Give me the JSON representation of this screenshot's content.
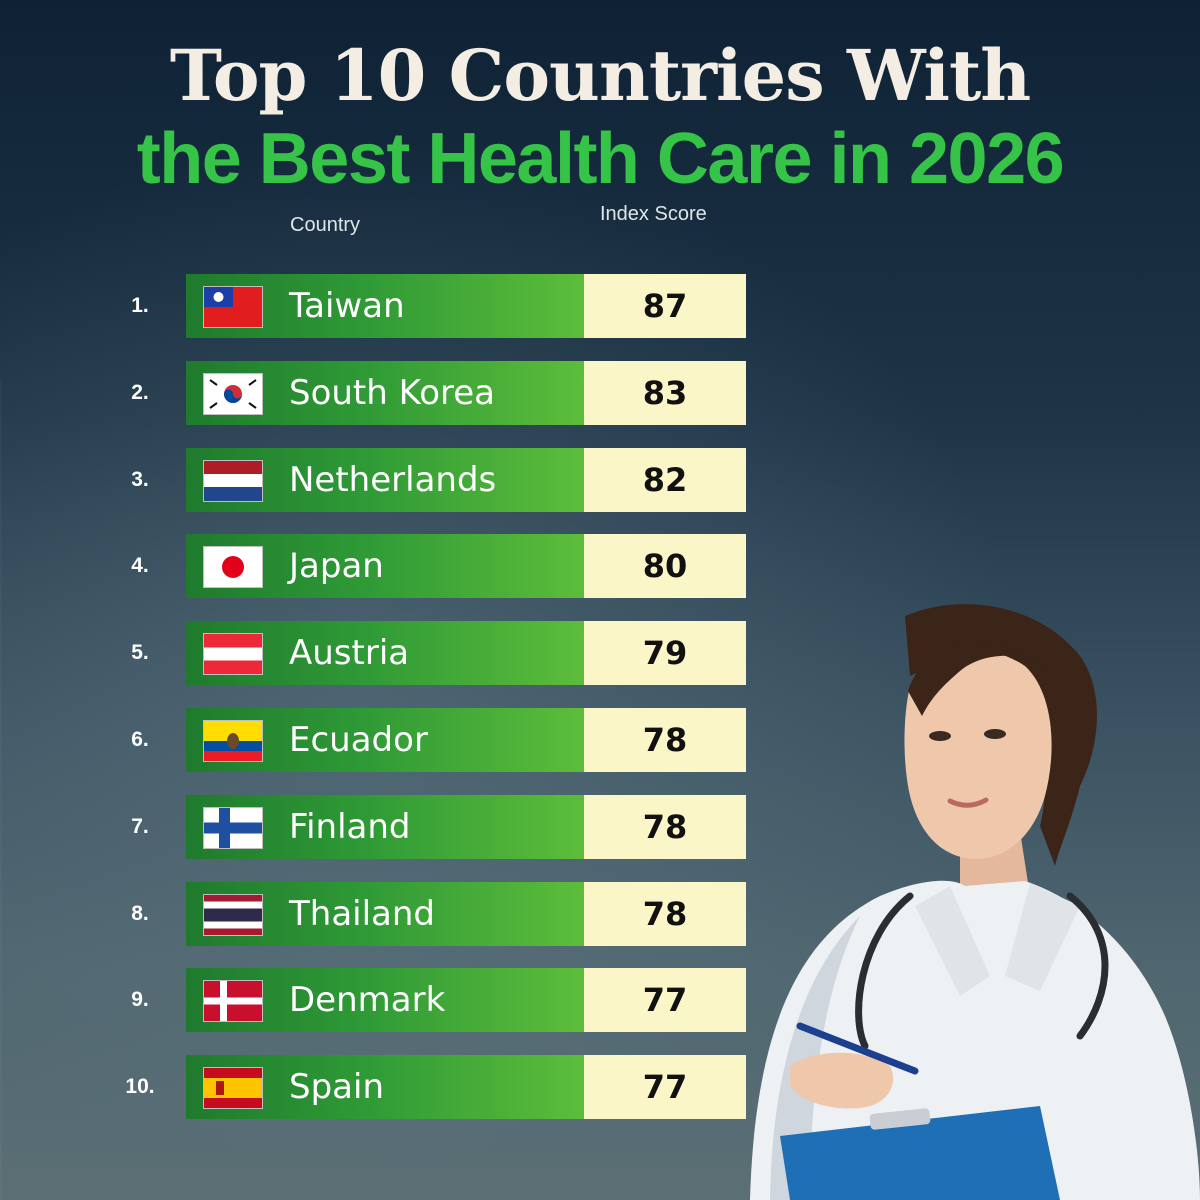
{
  "title_line1": "Top 10 Countries With",
  "title_line2": "the Best Health Care in 2026",
  "colors": {
    "title_green": "#35c447",
    "bar_green": "#2f9a36",
    "score_bg": "#fbf6c8"
  },
  "chart_data": {
    "type": "table",
    "columns": [
      "Country",
      "Index Score"
    ],
    "rows": [
      {
        "rank": "1.",
        "country": "Taiwan",
        "flag": "taiwan-flag-icon",
        "score": 87
      },
      {
        "rank": "2.",
        "country": "South Korea",
        "flag": "south-korea-flag-icon",
        "score": 83
      },
      {
        "rank": "3.",
        "country": "Netherlands",
        "flag": "netherlands-flag-icon",
        "score": 82
      },
      {
        "rank": "4.",
        "country": "Japan",
        "flag": "japan-flag-icon",
        "score": 80
      },
      {
        "rank": "5.",
        "country": "Austria",
        "flag": "austria-flag-icon",
        "score": 79
      },
      {
        "rank": "6.",
        "country": "Ecuador",
        "flag": "ecuador-flag-icon",
        "score": 78
      },
      {
        "rank": "7.",
        "country": "Finland",
        "flag": "finland-flag-icon",
        "score": 78
      },
      {
        "rank": "8.",
        "country": "Thailand",
        "flag": "thailand-flag-icon",
        "score": 78
      },
      {
        "rank": "9.",
        "country": "Denmark",
        "flag": "denmark-flag-icon",
        "score": 77
      },
      {
        "rank": "10.",
        "country": "Spain",
        "flag": "spain-flag-icon",
        "score": 77
      }
    ]
  }
}
